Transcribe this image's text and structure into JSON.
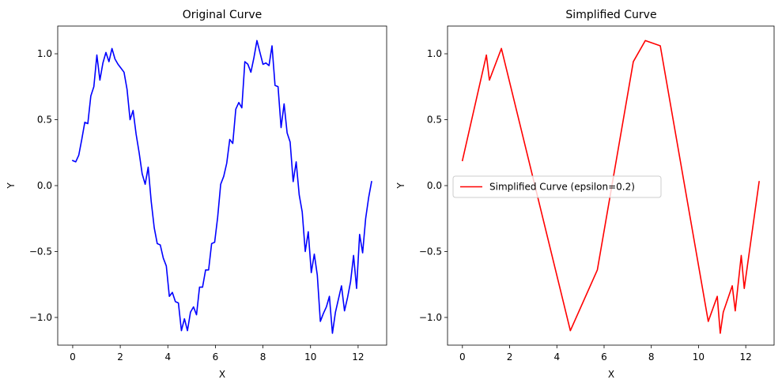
{
  "colors": {
    "original": "#0000ff",
    "simplified": "#ff0000",
    "axes": "#000000",
    "legend_border": "#cccccc"
  },
  "chart_data": [
    {
      "type": "line",
      "title": "Original Curve",
      "xlabel": "X",
      "ylabel": "Y",
      "xlim": [
        -0.63,
        13.2
      ],
      "ylim": [
        -1.21,
        1.21
      ],
      "xticks": [
        0,
        2,
        4,
        6,
        8,
        10,
        12
      ],
      "yticks": [
        -1.0,
        -0.5,
        0.0,
        0.5,
        1.0
      ],
      "xtick_labels": [
        "0",
        "2",
        "4",
        "6",
        "8",
        "10",
        "12"
      ],
      "ytick_labels": [
        "−1.0",
        "−0.5",
        "0.0",
        "0.5",
        "1.0"
      ],
      "grid": false,
      "legend": null,
      "series": [
        {
          "color": "#0000ff",
          "x": [
            0.0,
            0.127,
            0.254,
            0.381,
            0.508,
            0.635,
            0.762,
            0.889,
            1.016,
            1.143,
            1.27,
            1.397,
            1.524,
            1.651,
            1.778,
            1.905,
            2.032,
            2.158,
            2.285,
            2.412,
            2.539,
            2.666,
            2.793,
            2.92,
            3.047,
            3.174,
            3.301,
            3.428,
            3.555,
            3.682,
            3.809,
            3.936,
            4.063,
            4.19,
            4.317,
            4.444,
            4.571,
            4.698,
            4.825,
            4.952,
            5.079,
            5.206,
            5.333,
            5.46,
            5.587,
            5.714,
            5.841,
            5.968,
            6.095,
            6.222,
            6.349,
            6.476,
            6.603,
            6.73,
            6.857,
            6.984,
            7.111,
            7.238,
            7.365,
            7.492,
            7.619,
            7.746,
            7.873,
            8.0,
            8.126,
            8.253,
            8.38,
            8.507,
            8.634,
            8.761,
            8.888,
            9.015,
            9.142,
            9.269,
            9.396,
            9.523,
            9.65,
            9.777,
            9.904,
            10.031,
            10.158,
            10.285,
            10.412,
            10.539,
            10.666,
            10.793,
            10.92,
            11.047,
            11.174,
            11.301,
            11.428,
            11.555,
            11.682,
            11.809,
            11.936,
            12.063,
            12.19,
            12.317,
            12.444,
            12.566
          ],
          "y": [
            0.19,
            0.18,
            0.23,
            0.35,
            0.48,
            0.47,
            0.68,
            0.75,
            0.99,
            0.8,
            0.93,
            1.01,
            0.94,
            1.04,
            0.96,
            0.92,
            0.89,
            0.86,
            0.73,
            0.5,
            0.57,
            0.39,
            0.25,
            0.09,
            0.01,
            0.14,
            -0.12,
            -0.32,
            -0.44,
            -0.45,
            -0.55,
            -0.61,
            -0.84,
            -0.81,
            -0.88,
            -0.89,
            -1.1,
            -1.01,
            -1.1,
            -0.96,
            -0.92,
            -0.98,
            -0.77,
            -0.77,
            -0.64,
            -0.64,
            -0.44,
            -0.43,
            -0.24,
            0.01,
            0.07,
            0.17,
            0.35,
            0.32,
            0.58,
            0.63,
            0.59,
            0.94,
            0.92,
            0.86,
            0.97,
            1.1,
            1.01,
            0.92,
            0.93,
            0.91,
            1.06,
            0.76,
            0.75,
            0.44,
            0.62,
            0.4,
            0.33,
            0.03,
            0.18,
            -0.07,
            -0.2,
            -0.5,
            -0.35,
            -0.66,
            -0.52,
            -0.68,
            -1.03,
            -0.97,
            -0.92,
            -0.84,
            -1.12,
            -0.96,
            -0.86,
            -0.76,
            -0.95,
            -0.85,
            -0.73,
            -0.53,
            -0.78,
            -0.37,
            -0.51,
            -0.25,
            -0.09,
            0.03
          ]
        }
      ]
    },
    {
      "type": "line",
      "title": "Simplified Curve",
      "xlabel": "X",
      "ylabel": "Y",
      "xlim": [
        -0.63,
        13.2
      ],
      "ylim": [
        -1.21,
        1.21
      ],
      "xticks": [
        0,
        2,
        4,
        6,
        8,
        10,
        12
      ],
      "yticks": [
        -1.0,
        -0.5,
        0.0,
        0.5,
        1.0
      ],
      "xtick_labels": [
        "0",
        "2",
        "4",
        "6",
        "8",
        "10",
        "12"
      ],
      "ytick_labels": [
        "−1.0",
        "−0.5",
        "0.0",
        "0.5",
        "1.0"
      ],
      "grid": false,
      "legend": "center-left",
      "series": [
        {
          "name": "Simplified Curve (epsilon=0.2)",
          "color": "#ff0000",
          "x": [
            0.0,
            1.016,
            1.143,
            1.651,
            4.571,
            5.714,
            7.238,
            7.746,
            8.38,
            10.412,
            10.793,
            10.92,
            11.047,
            11.428,
            11.555,
            11.809,
            11.936,
            12.566
          ],
          "y": [
            0.19,
            0.99,
            0.8,
            1.04,
            -1.1,
            -0.64,
            0.94,
            1.1,
            1.06,
            -1.03,
            -0.84,
            -1.12,
            -0.96,
            -0.76,
            -0.95,
            -0.53,
            -0.78,
            0.03
          ]
        }
      ]
    }
  ]
}
